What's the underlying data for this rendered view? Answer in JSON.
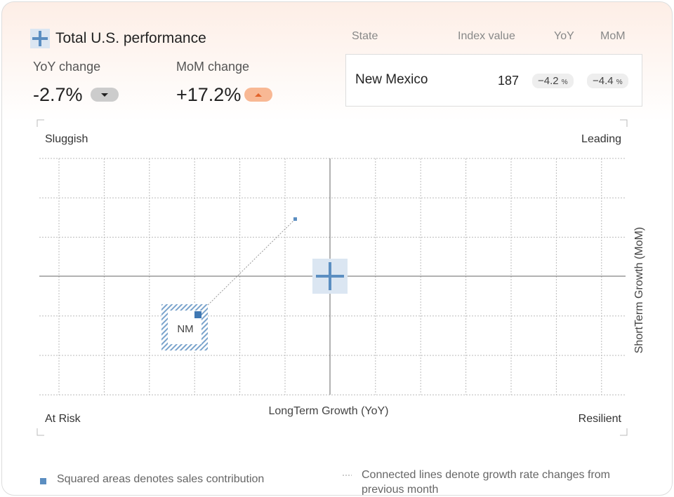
{
  "header": {
    "title": "Total U.S. performance"
  },
  "metrics": [
    {
      "label": "YoY change",
      "value": "-2.7%"
    },
    {
      "label": "MoM change",
      "value": "+17.2%"
    }
  ],
  "table": {
    "headers": [
      "State",
      "Index value",
      "YoY",
      "MoM"
    ],
    "rows": [
      [
        "New Mexico",
        187,
        "−4.2",
        "−4.4"
      ]
    ],
    "unit": "%"
  },
  "quadrants": {
    "top_left": "Sluggish",
    "top_right": "Leading",
    "bottom_left": "At Risk",
    "bottom_right": "Resilient"
  },
  "axes": {
    "x_label": "LongTerm Growth (YoY)",
    "y_label": "ShortTerm Growth (MoM)"
  },
  "points": [
    {
      "label": "NM"
    }
  ],
  "legend": [
    "Squared areas denotes sales contribution",
    "Connected lines denote growth rate changes from previous month"
  ]
}
